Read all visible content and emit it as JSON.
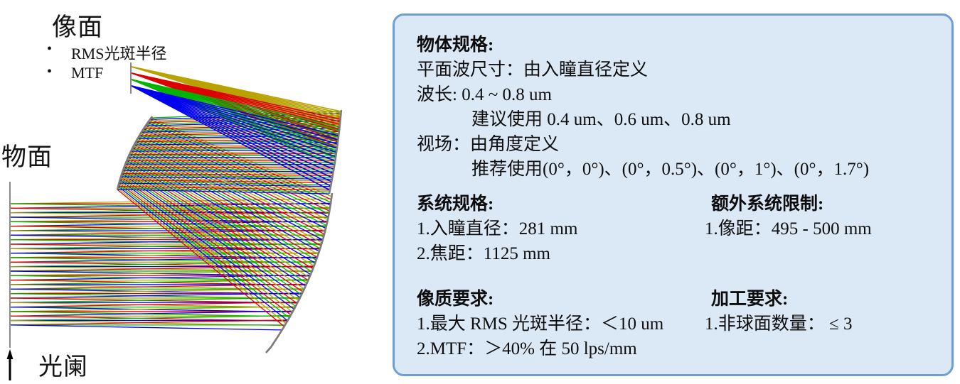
{
  "diagram": {
    "image_plane_label": "像面",
    "image_plane_bullets": [
      "RMS光斑半径",
      "MTF"
    ],
    "object_plane_label": "物面",
    "stop_label": "光阑",
    "ray_palette": [
      "#b8a200",
      "#dd0000",
      "#00b400",
      "#0000ee"
    ],
    "mirror_color": "#7a7a7a"
  },
  "spec_panel": {
    "background": "#dbe9f6",
    "border_color": "#6f9ed6",
    "object_spec": {
      "title": "物体规格:",
      "lines": [
        {
          "text": "平面波尺寸：由入瞳直径定义",
          "indent": false
        },
        {
          "text": "波长: 0.4 ~ 0.8 um",
          "indent": false
        },
        {
          "text": "建议使用  0.4 um、0.6 um、0.8 um",
          "indent": true
        },
        {
          "text": "视场：由角度定义",
          "indent": false
        },
        {
          "text": "推荐使用(0°，0°)、(0°，0.5°)、(0°，1°)、(0°，1.7°)",
          "indent": true
        }
      ]
    },
    "system_spec": {
      "title": "系统规格:",
      "items": [
        "1.入瞳直径：281 mm",
        "2.焦距：1125 mm"
      ]
    },
    "extra_limits": {
      "title": "额外系统限制:",
      "items": [
        "1.像距：495 - 500 mm"
      ]
    },
    "image_quality": {
      "title": "像质要求:",
      "items": [
        "1.最大 RMS 光斑半径：＜10 um",
        "2.MTF：＞40% 在 50 lps/mm"
      ]
    },
    "fabrication": {
      "title": "加工要求:",
      "items": [
        "1.非球面数量： ≤ 3"
      ]
    }
  }
}
